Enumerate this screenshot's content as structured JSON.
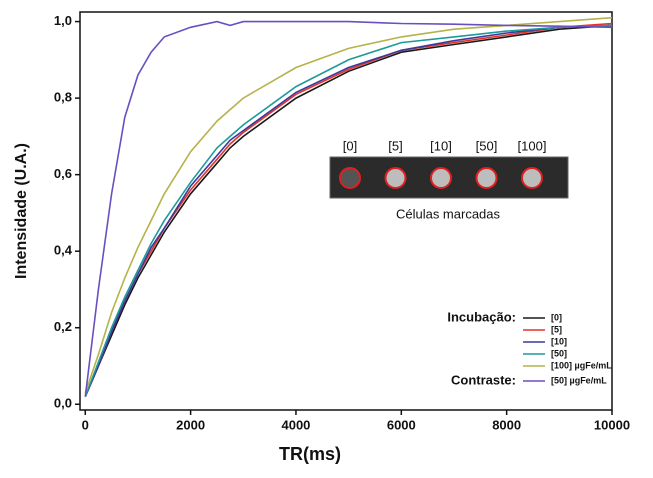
{
  "chart_data": {
    "type": "line",
    "xlabel": "TR(ms)",
    "ylabel": "Intensidade (U.A.)",
    "x": [
      0,
      250,
      500,
      750,
      1000,
      1250,
      1500,
      2000,
      2500,
      2750,
      3000,
      4000,
      5000,
      6000,
      7000,
      8000,
      9000,
      10000
    ],
    "series": [
      {
        "name": "[0]",
        "color": "#1a1a1a",
        "group": 0,
        "values": [
          0.02,
          0.1,
          0.18,
          0.26,
          0.33,
          0.39,
          0.45,
          0.55,
          0.63,
          0.67,
          0.7,
          0.8,
          0.87,
          0.92,
          0.94,
          0.96,
          0.98,
          0.99
        ]
      },
      {
        "name": "[5]",
        "color": "#e8312a",
        "group": 0,
        "values": [
          0.02,
          0.1,
          0.19,
          0.27,
          0.34,
          0.4,
          0.46,
          0.56,
          0.64,
          0.68,
          0.71,
          0.81,
          0.875,
          0.925,
          0.945,
          0.965,
          0.985,
          0.995
        ]
      },
      {
        "name": "[10]",
        "color": "#3a3a9e",
        "group": 0,
        "values": [
          0.02,
          0.1,
          0.19,
          0.27,
          0.34,
          0.41,
          0.46,
          0.57,
          0.65,
          0.69,
          0.715,
          0.815,
          0.88,
          0.925,
          0.95,
          0.97,
          0.985,
          0.99
        ]
      },
      {
        "name": "[50]",
        "color": "#1f9a9a",
        "group": 0,
        "values": [
          0.02,
          0.11,
          0.2,
          0.28,
          0.35,
          0.42,
          0.48,
          0.58,
          0.67,
          0.7,
          0.73,
          0.83,
          0.9,
          0.945,
          0.96,
          0.975,
          0.985,
          0.99
        ]
      },
      {
        "name": "[100] µgFe/mL",
        "color": "#b5b24a",
        "group": 0,
        "values": [
          0.03,
          0.13,
          0.24,
          0.33,
          0.41,
          0.48,
          0.55,
          0.66,
          0.74,
          0.77,
          0.8,
          0.88,
          0.93,
          0.96,
          0.98,
          0.99,
          1.0,
          1.01
        ]
      },
      {
        "name": "[50] µgFe/mL",
        "color": "#6a4fc0",
        "group": 1,
        "values": [
          0.02,
          0.3,
          0.55,
          0.75,
          0.86,
          0.92,
          0.96,
          0.985,
          1.0,
          0.99,
          1.0,
          1.0,
          1.0,
          0.995,
          0.993,
          0.99,
          0.988,
          0.985
        ]
      }
    ],
    "legend_groups": [
      "Incubação:",
      "Contraste:"
    ],
    "inset": {
      "labels": [
        "[0]",
        "[5]",
        "[10]",
        "[50]",
        "[100]"
      ],
      "caption": "Células marcadas"
    },
    "xlim": [
      -100,
      10000
    ],
    "ylim": [
      -0.015,
      1.025
    ],
    "xticks": [
      0,
      2000,
      4000,
      6000,
      8000,
      10000
    ],
    "yticks": [
      {
        "value": 0,
        "label": "0,0"
      },
      {
        "value": 0.2,
        "label": "0,2"
      },
      {
        "value": 0.4,
        "label": "0,4"
      },
      {
        "value": 0.6,
        "label": "0,6"
      },
      {
        "value": 0.8,
        "label": "0,8"
      },
      {
        "value": 1.0,
        "label": "1,0"
      }
    ]
  }
}
